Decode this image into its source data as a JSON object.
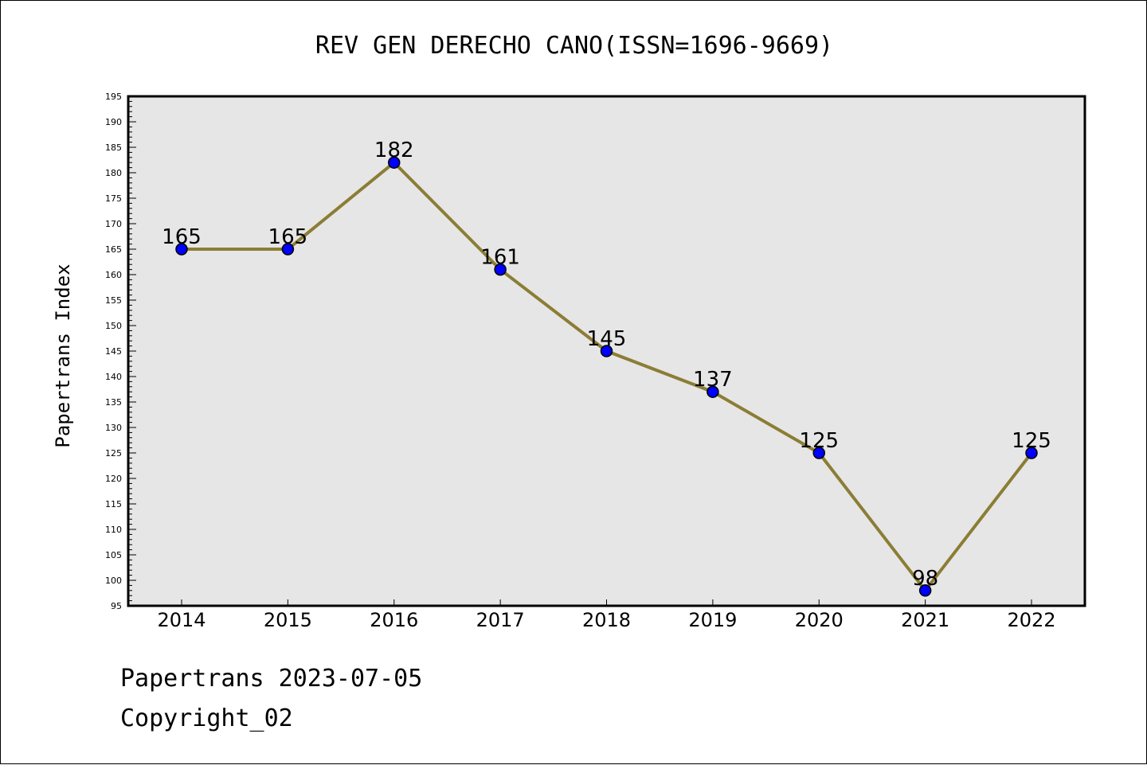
{
  "chart_data": {
    "type": "line",
    "title": "REV GEN DERECHO CANO(ISSN=1696-9669)",
    "xlabel": "",
    "ylabel": "Papertrans Index",
    "categories": [
      "2014",
      "2015",
      "2016",
      "2017",
      "2018",
      "2019",
      "2020",
      "2021",
      "2022"
    ],
    "values": [
      165,
      165,
      182,
      161,
      145,
      137,
      125,
      98,
      125
    ],
    "ylim": [
      95,
      195
    ],
    "y_major_step": 5,
    "y_minor_step": 1,
    "y_ticks": [
      "95",
      "100",
      "105",
      "110",
      "115",
      "120",
      "125",
      "130",
      "135",
      "140",
      "145",
      "150",
      "155",
      "160",
      "165",
      "170",
      "175",
      "180",
      "185",
      "190",
      "195"
    ],
    "data_labels": [
      "165",
      "165",
      "182",
      "161",
      "145",
      "137",
      "125",
      "98",
      "125"
    ],
    "grid": false,
    "legend": "none",
    "colors": {
      "line": "#8b7d35",
      "marker_fill": "#0000ff",
      "marker_stroke": "#000000",
      "plot_background": "#e6e6e6",
      "axes_frame": "#000000"
    }
  },
  "footer": {
    "date_label": "Papertrans 2023-07-05",
    "copyright": "Copyright_02"
  }
}
